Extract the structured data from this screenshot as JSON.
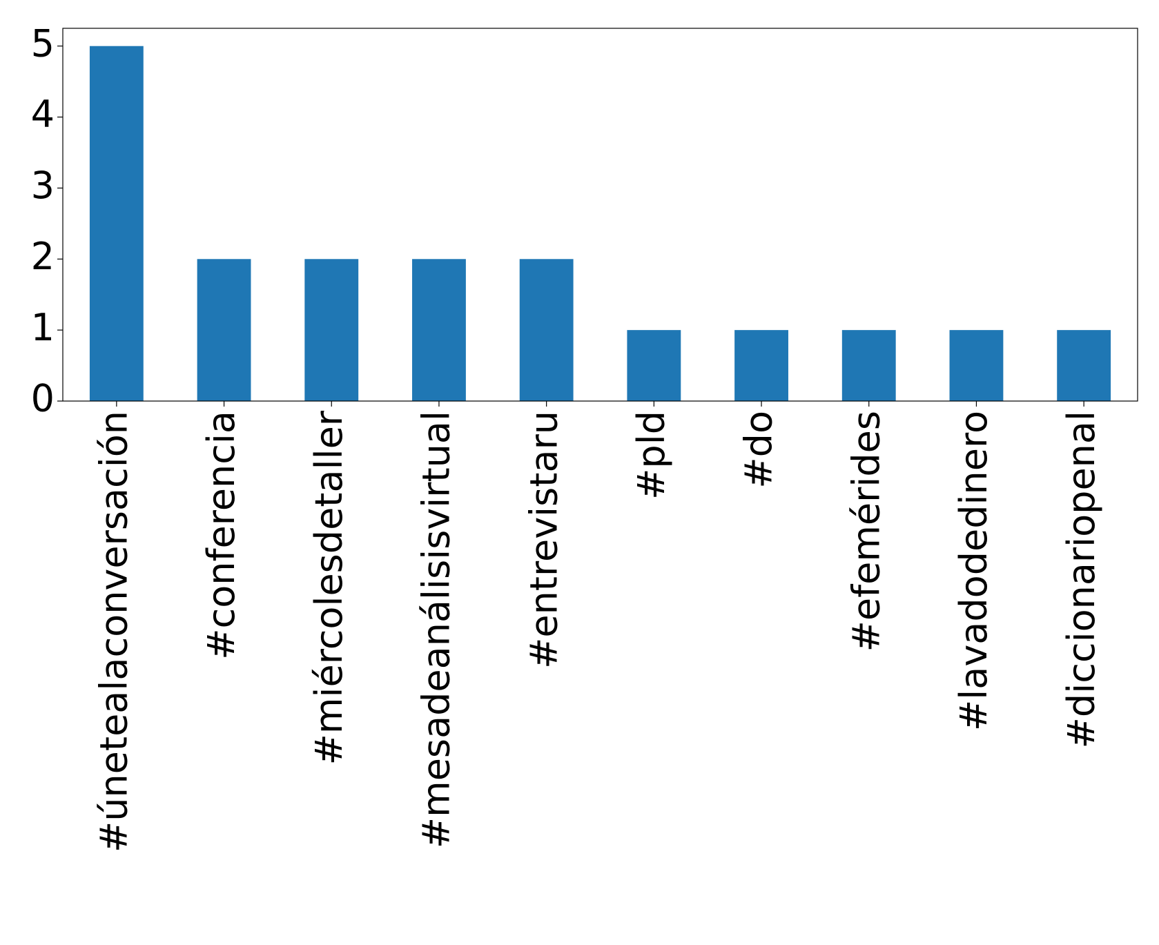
{
  "chart_data": {
    "type": "bar",
    "categories": [
      "#únetealaconversación",
      "#conferencia",
      "#miércolesdetaller",
      "#mesadeanálisisvirtual",
      "#entrevistaru",
      "#pld",
      "#do",
      "#efemérides",
      "#lavadodedinero",
      "#diccionariopenal"
    ],
    "values": [
      5,
      2,
      2,
      2,
      2,
      1,
      1,
      1,
      1,
      1
    ],
    "color": "#1f77b4",
    "ylim": [
      0,
      5.25
    ],
    "yticks": [
      0,
      1,
      2,
      3,
      4,
      5
    ],
    "grid": false
  }
}
